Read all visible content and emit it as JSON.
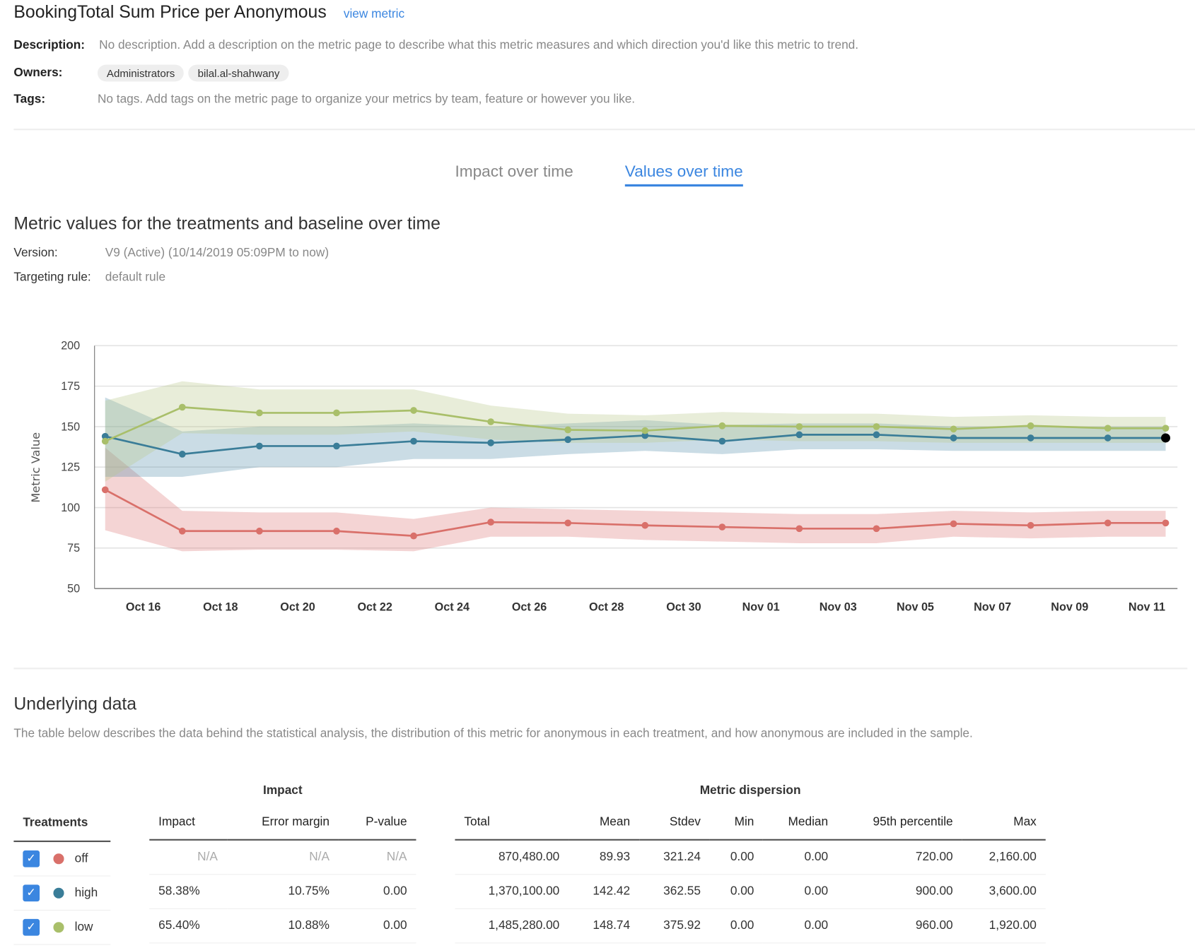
{
  "header": {
    "title": "BookingTotal Sum Price per Anonymous",
    "view_metric": "view metric"
  },
  "details": {
    "description_label": "Description:",
    "description": "No description. Add a description on the metric page to describe what this metric measures and which direction you'd like this metric to trend.",
    "owners_label": "Owners:",
    "owners": [
      "Administrators",
      "bilal.al-shahwany"
    ],
    "tags_label": "Tags:",
    "tags": "No tags. Add tags on the metric page to organize your metrics by team, feature or however you like."
  },
  "tabs": [
    {
      "label": "Impact over time",
      "active": false
    },
    {
      "label": "Values over time",
      "active": true
    }
  ],
  "section": {
    "title": "Metric values for the treatments and baseline over time",
    "version_label": "Version:",
    "version": "V9 (Active) (10/14/2019 05:09PM to now)",
    "targeting_label": "Targeting rule:",
    "targeting": "default rule"
  },
  "chart_data": {
    "type": "line",
    "ylabel": "Metric Value",
    "ylim": [
      50,
      200
    ],
    "yticks": [
      "200",
      "175",
      "150",
      "125",
      "100",
      "75",
      "50"
    ],
    "xticks": [
      "Oct 16",
      "Oct 18",
      "Oct 20",
      "Oct 22",
      "Oct 24",
      "Oct 26",
      "Oct 28",
      "Oct 30",
      "Nov 01",
      "Nov 03",
      "Nov 05",
      "Nov 07",
      "Nov 09",
      "Nov 11"
    ],
    "grid": true,
    "x": [
      "2019-10-15",
      "2019-10-17",
      "2019-10-19",
      "2019-10-21",
      "2019-10-23",
      "2019-10-25",
      "2019-10-27",
      "2019-10-29",
      "2019-10-31",
      "2019-11-02",
      "2019-11-04",
      "2019-11-06",
      "2019-11-08",
      "2019-11-10",
      "2019-11-11T12:00"
    ],
    "series": [
      {
        "name": "off",
        "color": "#d9706a",
        "band": "rgba(222,120,120,0.32)",
        "values": [
          111,
          85.5,
          85.5,
          85.5,
          82.5,
          91,
          90.5,
          89,
          88,
          87,
          87,
          90,
          89,
          90.5,
          90.5
        ],
        "lower": [
          86,
          73,
          74,
          74,
          73,
          82,
          82,
          80,
          79,
          78,
          78,
          82,
          81,
          82,
          82
        ],
        "upper": [
          137,
          98,
          97,
          97,
          93,
          100,
          99,
          98,
          97,
          96,
          96,
          98,
          97,
          98,
          98
        ]
      },
      {
        "name": "high",
        "color": "#3a7d98",
        "band": "rgba(80,140,170,0.3)",
        "values": [
          144,
          133,
          138,
          138,
          141,
          140,
          142,
          144.5,
          141,
          145,
          145,
          143,
          143,
          143,
          143
        ],
        "lower": [
          119,
          119,
          125,
          125,
          130,
          130,
          133,
          135,
          133,
          136,
          136,
          135,
          135,
          135,
          135
        ],
        "upper": [
          168,
          147,
          150,
          150,
          152,
          150,
          152,
          154,
          151,
          152,
          152,
          150,
          150,
          150,
          150
        ]
      },
      {
        "name": "low",
        "color": "#a9bf6a",
        "band": "rgba(185,200,140,0.33)",
        "values": [
          141,
          162,
          158.5,
          158.5,
          160,
          153,
          148,
          147.5,
          150.5,
          150,
          150,
          148.5,
          150.5,
          149,
          149
        ],
        "lower": [
          116,
          146,
          145,
          145,
          147,
          142,
          140,
          140,
          142,
          141,
          141,
          140,
          140,
          140,
          140
        ],
        "upper": [
          166,
          178,
          173,
          173,
          173,
          163,
          158,
          157,
          159,
          158,
          158,
          156,
          157,
          156,
          156
        ]
      }
    ]
  },
  "underlying": {
    "title": "Underlying data",
    "description": "The table below describes the data behind the statistical analysis, the distribution of this metric for anonymous in each treatment, and how anonymous are included in the sample.",
    "treatments_header": "Treatments",
    "impact_group": "Impact",
    "impact_headers": [
      "Impact",
      "Error margin",
      "P-value"
    ],
    "dispersion_group": "Metric dispersion",
    "dispersion_headers": [
      "Total",
      "Mean",
      "Stdev",
      "Min",
      "Median",
      "95th percentile",
      "Max"
    ],
    "rows": [
      {
        "name": "off",
        "checked": true,
        "color": "#d9706a",
        "impact": [
          "N/A",
          "N/A",
          "N/A"
        ],
        "dispersion": [
          "870,480.00",
          "89.93",
          "321.24",
          "0.00",
          "0.00",
          "720.00",
          "2,160.00"
        ]
      },
      {
        "name": "high",
        "checked": true,
        "color": "#3a7d98",
        "impact": [
          "58.38%",
          "10.75%",
          "0.00"
        ],
        "dispersion": [
          "1,370,100.00",
          "142.42",
          "362.55",
          "0.00",
          "0.00",
          "900.00",
          "3,600.00"
        ]
      },
      {
        "name": "low",
        "checked": true,
        "color": "#a9bf6a",
        "impact": [
          "65.40%",
          "10.88%",
          "0.00"
        ],
        "dispersion": [
          "1,485,280.00",
          "148.74",
          "375.92",
          "0.00",
          "0.00",
          "960.00",
          "1,920.00"
        ]
      }
    ]
  }
}
